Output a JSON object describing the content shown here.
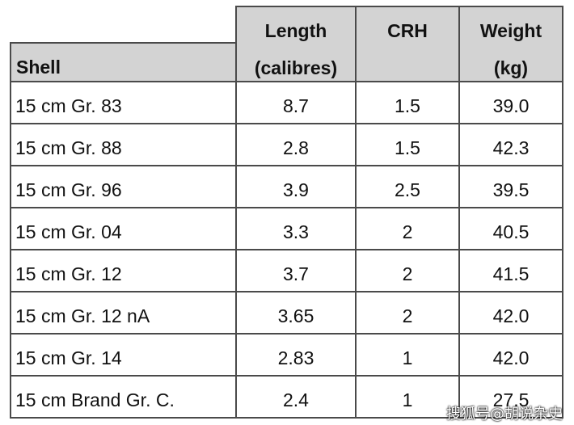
{
  "table": {
    "header": {
      "shell": "Shell",
      "columns": [
        [
          "Length",
          "(calibres)"
        ],
        [
          "CRH"
        ],
        [
          "Weight",
          "(kg)"
        ]
      ]
    },
    "rows": [
      [
        "15 cm Gr. 83",
        "8.7",
        "1.5",
        "39.0"
      ],
      [
        "15 cm Gr. 88",
        "2.8",
        "1.5",
        "42.3"
      ],
      [
        "15 cm Gr. 96",
        "3.9",
        "2.5",
        "39.5"
      ],
      [
        "15 cm Gr. 04",
        "3.3",
        "2",
        "40.5"
      ],
      [
        "15 cm Gr. 12",
        "3.7",
        "2",
        "41.5"
      ],
      [
        "15 cm Gr. 12 nA",
        "3.65",
        "2",
        "42.0"
      ],
      [
        "15 cm Gr. 14",
        "2.83",
        "1",
        "42.0"
      ],
      [
        "15 cm Brand Gr. C.",
        "2.4",
        "1",
        "27.5"
      ]
    ]
  },
  "watermark": "搜狐号@胡说杂史"
}
